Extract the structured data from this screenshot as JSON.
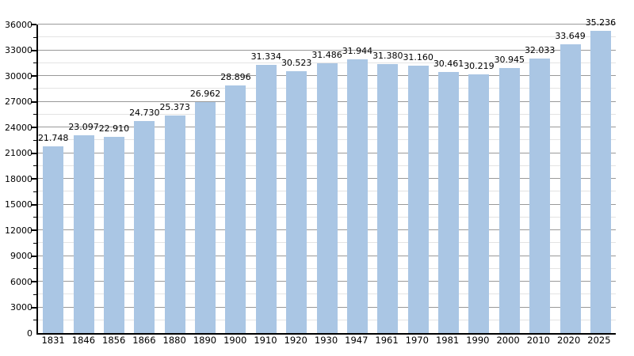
{
  "chart_data": {
    "type": "bar",
    "title": "",
    "xlabel": "",
    "ylabel": "",
    "categories": [
      "1831",
      "1846",
      "1856",
      "1866",
      "1880",
      "1890",
      "1900",
      "1910",
      "1920",
      "1930",
      "1947",
      "1961",
      "1970",
      "1981",
      "1990",
      "2000",
      "2010",
      "2020",
      "2025"
    ],
    "values": [
      21748,
      23097,
      22910,
      24730,
      25373,
      26962,
      28896,
      31334,
      30523,
      31486,
      31944,
      31380,
      31160,
      30461,
      30219,
      30945,
      32033,
      33649,
      35236
    ],
    "value_labels": [
      "21.748",
      "23.097",
      "22.910",
      "24.730",
      "25.373",
      "26.962",
      "28.896",
      "31.334",
      "30.523",
      "31.486",
      "31.944",
      "31.380",
      "31.160",
      "30.461",
      "30.219",
      "30.945",
      "32.033",
      "33.649",
      "35.236"
    ],
    "ylim": [
      0,
      36000
    ],
    "y_major_step": 3000,
    "y_minor_step": 1500,
    "y_tick_labels": [
      "0",
      "3000",
      "6000",
      "9000",
      "12000",
      "15000",
      "18000",
      "21000",
      "24000",
      "27000",
      "30000",
      "33000",
      "36000"
    ],
    "grid": "horizontal major + minor",
    "legend_position": "none",
    "colors": {
      "bar_fill": "#aac6e4",
      "grid_major": "#999999",
      "grid_minor": "#e3e3e3",
      "axis": "#000000",
      "text": "#000000",
      "background": "#ffffff"
    }
  }
}
